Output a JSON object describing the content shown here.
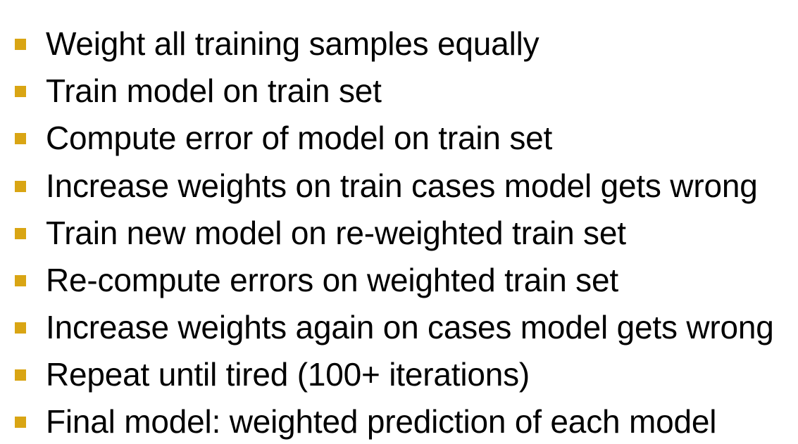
{
  "bullets": [
    {
      "text": "Weight all training samples equally"
    },
    {
      "text": "Train model on train set"
    },
    {
      "text": "Compute error of model on train set"
    },
    {
      "text": "Increase weights on train cases model gets wrong"
    },
    {
      "text": "Train new model on re-weighted train set"
    },
    {
      "text": "Re-compute errors on weighted train set"
    },
    {
      "text": "Increase weights again on cases model gets wrong"
    },
    {
      "text": "Repeat until tired (100+ iterations)"
    },
    {
      "text": "Final model: weighted prediction of each model"
    }
  ],
  "colors": {
    "bullet_marker": "#d9a514",
    "text": "#000000",
    "background": "#ffffff"
  }
}
